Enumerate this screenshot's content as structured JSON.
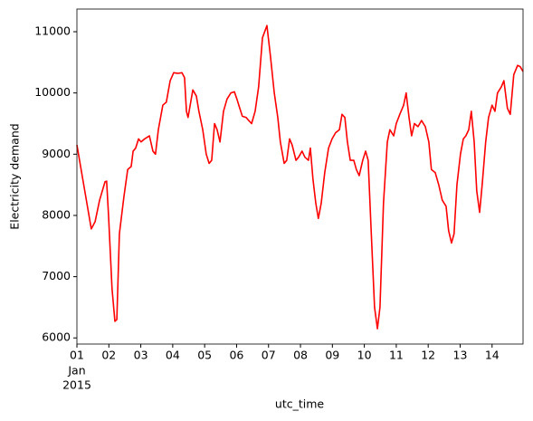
{
  "chart_data": {
    "type": "line",
    "x_label": "utc_time",
    "y_label": "Electricity demand",
    "x_month_label": "Jan",
    "x_year_label": "2015",
    "x": [
      1.0,
      1.45,
      1.57,
      1.71,
      1.88,
      1.93,
      1.99,
      2.1,
      2.19,
      2.25,
      2.33,
      2.47,
      2.59,
      2.7,
      2.76,
      2.84,
      2.93,
      3.01,
      3.12,
      3.27,
      3.38,
      3.46,
      3.55,
      3.69,
      3.8,
      3.92,
      4.03,
      4.17,
      4.29,
      4.37,
      4.43,
      4.48,
      4.63,
      4.74,
      4.82,
      4.94,
      5.05,
      5.14,
      5.22,
      5.31,
      5.39,
      5.48,
      5.59,
      5.7,
      5.82,
      5.93,
      6.01,
      6.1,
      6.18,
      6.3,
      6.38,
      6.47,
      6.58,
      6.69,
      6.81,
      6.95,
      7.06,
      7.18,
      7.29,
      7.37,
      7.49,
      7.57,
      7.66,
      7.74,
      7.86,
      7.94,
      8.05,
      8.14,
      8.25,
      8.31,
      8.39,
      8.48,
      8.56,
      8.65,
      8.76,
      8.88,
      8.99,
      9.1,
      9.22,
      9.3,
      9.39,
      9.47,
      9.56,
      9.67,
      9.75,
      9.84,
      9.95,
      10.04,
      10.12,
      10.21,
      10.32,
      10.41,
      10.49,
      10.6,
      10.72,
      10.8,
      10.92,
      11.0,
      11.11,
      11.23,
      11.31,
      11.4,
      11.48,
      11.57,
      11.68,
      11.79,
      11.91,
      12.02,
      12.1,
      12.22,
      12.33,
      12.44,
      12.56,
      12.64,
      12.73,
      12.81,
      12.9,
      13.01,
      13.1,
      13.18,
      13.27,
      13.35,
      13.44,
      13.52,
      13.61,
      13.69,
      13.8,
      13.89,
      14.0,
      14.09,
      14.17,
      14.29,
      14.37,
      14.48,
      14.57,
      14.68,
      14.8,
      14.88,
      14.97
    ],
    "series": [
      {
        "name": "Electricity demand",
        "color": "#ff0000",
        "values": [
          9150,
          7780,
          7900,
          8250,
          8550,
          8560,
          8000,
          6800,
          6270,
          6300,
          7700,
          8300,
          8750,
          8800,
          9050,
          9100,
          9250,
          9200,
          9250,
          9300,
          9050,
          9000,
          9400,
          9800,
          9850,
          10200,
          10330,
          10320,
          10330,
          10250,
          9700,
          9600,
          10050,
          9950,
          9700,
          9400,
          9000,
          8850,
          8900,
          9500,
          9400,
          9200,
          9700,
          9900,
          10000,
          10020,
          9900,
          9750,
          9620,
          9600,
          9550,
          9500,
          9700,
          10100,
          10900,
          11100,
          10600,
          10000,
          9600,
          9200,
          8850,
          8900,
          9250,
          9150,
          8900,
          8950,
          9050,
          8950,
          8900,
          9100,
          8600,
          8200,
          7950,
          8200,
          8700,
          9100,
          9250,
          9350,
          9400,
          9650,
          9600,
          9200,
          8900,
          8900,
          8750,
          8650,
          8900,
          9050,
          8900,
          7800,
          6500,
          6150,
          6500,
          8200,
          9200,
          9400,
          9300,
          9500,
          9650,
          9800,
          10000,
          9600,
          9300,
          9500,
          9450,
          9550,
          9450,
          9200,
          8750,
          8700,
          8500,
          8250,
          8150,
          7750,
          7550,
          7700,
          8500,
          9000,
          9250,
          9300,
          9400,
          9700,
          9200,
          8400,
          8050,
          8500,
          9200,
          9600,
          9800,
          9700,
          10000,
          10100,
          10200,
          9750,
          9650,
          10300,
          10450,
          10430,
          10350
        ]
      }
    ],
    "xlim": [
      1,
      14.97
    ],
    "ylim": [
      5900,
      11370
    ],
    "xticks": [
      {
        "value": 1,
        "label": "01"
      },
      {
        "value": 2,
        "label": "02"
      },
      {
        "value": 3,
        "label": "03"
      },
      {
        "value": 4,
        "label": "04"
      },
      {
        "value": 5,
        "label": "05"
      },
      {
        "value": 6,
        "label": "06"
      },
      {
        "value": 7,
        "label": "07"
      },
      {
        "value": 8,
        "label": "08"
      },
      {
        "value": 9,
        "label": "09"
      },
      10,
      11,
      12,
      13,
      14
    ],
    "yticks": [
      6000,
      7000,
      8000,
      9000,
      10000,
      11000
    ]
  }
}
